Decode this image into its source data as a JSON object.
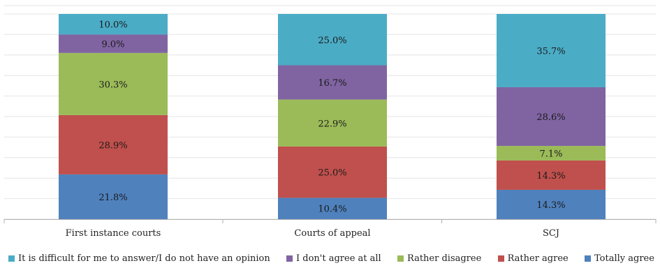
{
  "chart_data": {
    "type": "bar",
    "stacked": true,
    "orientation": "vertical",
    "categories": [
      "First instance courts",
      "Courts of appeal",
      "SCJ"
    ],
    "series": [
      {
        "name": "Totally agree",
        "color": "#4f81bd",
        "values": [
          21.8,
          10.4,
          14.3
        ],
        "labels": [
          "21.8%",
          "10.4%",
          "14.3%"
        ]
      },
      {
        "name": "Rather agree",
        "color": "#c0504d",
        "values": [
          28.9,
          25.0,
          14.3
        ],
        "labels": [
          "28.9%",
          "25.0%",
          "14.3%"
        ]
      },
      {
        "name": "Rather disagree",
        "color": "#9bbb59",
        "values": [
          30.3,
          22.9,
          7.1
        ],
        "labels": [
          "30.3%",
          "22.9%",
          "7.1%"
        ]
      },
      {
        "name": "I don't agree at all",
        "color": "#8064a2",
        "values": [
          9.0,
          16.7,
          28.6
        ],
        "labels": [
          "9.0%",
          "16.7%",
          "28.6%"
        ]
      },
      {
        "name": "It is difficult for me to answer/I do not have an opinion",
        "color": "#4bacc6",
        "values": [
          10.0,
          25.0,
          35.7
        ],
        "labels": [
          "10.0%",
          "25.0%",
          "35.7%"
        ]
      }
    ],
    "ylim": [
      0,
      100
    ],
    "grid": true,
    "legend_position": "bottom",
    "title": "",
    "xlabel": "",
    "ylabel": ""
  }
}
